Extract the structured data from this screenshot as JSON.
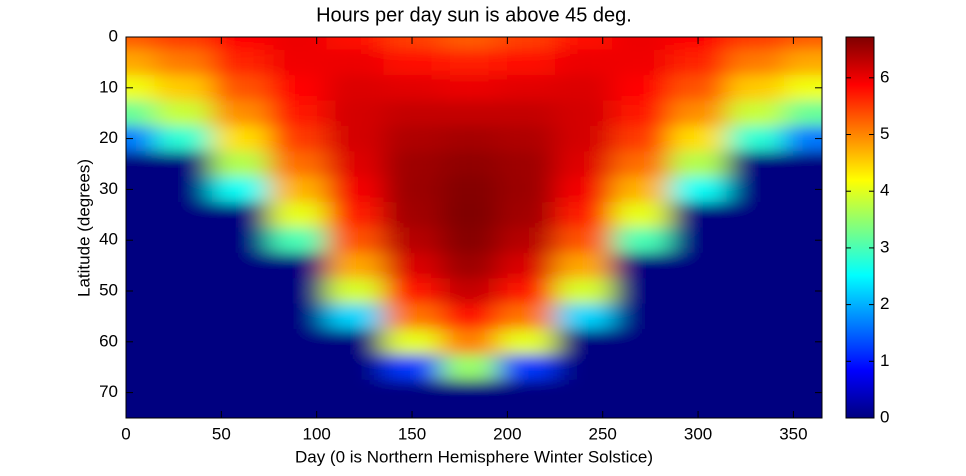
{
  "chart_data": {
    "type": "heatmap",
    "title": "Hours per day sun is above 45 deg.",
    "x_label": "Day (0 is Northern Hemisphere Winter Solstice)",
    "y_label": "Latitude (degrees)",
    "colormap": "jet",
    "x": [
      0,
      30,
      60,
      90,
      120,
      150,
      180,
      210,
      240,
      270,
      300,
      330,
      360
    ],
    "y": [
      0,
      5,
      10,
      15,
      20,
      25,
      30,
      35,
      40,
      45,
      50,
      55,
      60,
      65,
      70,
      75
    ],
    "z": [
      [
        5.28,
        5.49,
        5.85,
        6.0,
        5.83,
        5.47,
        5.28,
        5.47,
        5.83,
        6.0,
        5.85,
        5.49,
        5.28
      ],
      [
        4.77,
        5.08,
        5.64,
        5.97,
        6.0,
        5.81,
        5.68,
        5.81,
        6.0,
        5.97,
        5.64,
        5.08,
        4.77
      ],
      [
        4.11,
        4.55,
        5.33,
        5.88,
        6.11,
        6.07,
        6.01,
        6.07,
        6.11,
        5.88,
        5.33,
        4.55,
        4.11
      ],
      [
        3.2,
        3.84,
        4.95,
        5.72,
        6.16,
        6.27,
        6.27,
        6.27,
        6.16,
        5.72,
        4.95,
        3.84,
        3.2
      ],
      [
        1.63,
        2.8,
        4.41,
        5.49,
        6.16,
        6.41,
        6.47,
        6.41,
        6.16,
        5.49,
        4.41,
        2.8,
        1.63
      ],
      [
        0,
        0,
        3.69,
        5.16,
        6.09,
        6.51,
        6.61,
        6.51,
        6.09,
        5.16,
        3.69,
        0,
        0
      ],
      [
        0,
        0,
        2.57,
        4.71,
        5.95,
        6.53,
        6.69,
        6.53,
        5.95,
        4.71,
        2.57,
        0,
        0
      ],
      [
        0,
        0,
        0,
        4.04,
        5.71,
        6.49,
        6.72,
        6.49,
        5.71,
        4.04,
        0,
        0,
        0
      ],
      [
        0,
        0,
        0,
        3.01,
        5.33,
        6.36,
        6.67,
        6.36,
        5.33,
        3.01,
        0,
        0,
        0
      ],
      [
        0,
        0,
        0,
        0,
        4.79,
        6.13,
        6.52,
        6.13,
        4.79,
        0,
        0,
        0,
        0
      ],
      [
        0,
        0,
        0,
        0,
        3.92,
        5.75,
        6.26,
        5.75,
        3.92,
        0,
        0,
        0,
        0
      ],
      [
        0,
        0,
        0,
        0,
        2.25,
        5.12,
        5.8,
        5.12,
        2.25,
        0,
        0,
        0,
        0
      ],
      [
        0,
        0,
        0,
        0,
        0,
        4.03,
        5.03,
        4.03,
        0,
        0,
        0,
        0,
        0
      ],
      [
        0,
        0,
        0,
        0,
        0,
        1.2,
        3.53,
        1.2,
        0,
        0,
        0,
        0,
        0
      ],
      [
        0,
        0,
        0,
        0,
        0,
        0,
        0,
        0,
        0,
        0,
        0,
        0,
        0
      ],
      [
        0,
        0,
        0,
        0,
        0,
        0,
        0,
        0,
        0,
        0,
        0,
        0,
        0
      ]
    ],
    "xlim": [
      0,
      365
    ],
    "xticks": [
      0,
      50,
      100,
      150,
      200,
      250,
      300,
      350
    ],
    "ylim": [
      0,
      75
    ],
    "yticks": [
      0,
      10,
      20,
      30,
      40,
      50,
      60,
      70
    ],
    "y_reversed": true,
    "clim": [
      0,
      6.72
    ],
    "cticks": [
      0,
      1,
      2,
      3,
      4,
      5,
      6
    ]
  }
}
